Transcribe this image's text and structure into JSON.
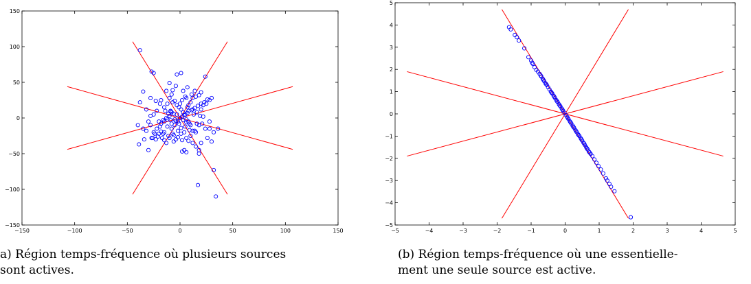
{
  "captions": {
    "a_line1": "a) Région temps-fréquence où plusieurs sources",
    "a_line2": "sont actives.",
    "b_line1": "(b) Région temps-fréquence où une essentielle-",
    "b_line2": "ment une seule source est active."
  },
  "colors": {
    "points": "#0000ff",
    "lines": "#ff0000",
    "axes": "#000000"
  },
  "chart_data": [
    {
      "type": "scatter",
      "panel": "a",
      "xlim": [
        -150,
        150
      ],
      "ylim": [
        -150,
        150
      ],
      "xticks": [
        -150,
        -100,
        -50,
        0,
        50,
        100,
        150
      ],
      "yticks": [
        -150,
        -100,
        -50,
        0,
        50,
        100,
        150
      ],
      "grid": false,
      "lines": [
        {
          "x": [
            -45,
            45
          ],
          "y": [
            107,
            -107
          ]
        },
        {
          "x": [
            -45,
            45
          ],
          "y": [
            -107,
            107
          ]
        },
        {
          "x": [
            -107,
            107
          ],
          "y": [
            44,
            -44
          ]
        },
        {
          "x": [
            -107,
            107
          ],
          "y": [
            -44,
            44
          ]
        }
      ],
      "points": [
        [
          -38,
          95
        ],
        [
          -27,
          65
        ],
        [
          -25,
          63
        ],
        [
          -35,
          37
        ],
        [
          -28,
          28
        ],
        [
          -38,
          22
        ],
        [
          -32,
          12
        ],
        [
          -40,
          -10
        ],
        [
          -35,
          -15
        ],
        [
          -39,
          -37
        ],
        [
          -34,
          -30
        ],
        [
          -30,
          -45
        ],
        [
          -26,
          -28
        ],
        [
          -20,
          -22
        ],
        [
          -18,
          -8
        ],
        [
          -15,
          -5
        ],
        [
          -12,
          -12
        ],
        [
          -10,
          3
        ],
        [
          -8,
          8
        ],
        [
          -5,
          -2
        ],
        [
          -3,
          5
        ],
        [
          -2,
          -5
        ],
        [
          0,
          0
        ],
        [
          2,
          2
        ],
        [
          3,
          -3
        ],
        [
          5,
          5
        ],
        [
          6,
          -6
        ],
        [
          8,
          10
        ],
        [
          10,
          -10
        ],
        [
          12,
          12
        ],
        [
          -15,
          15
        ],
        [
          -12,
          20
        ],
        [
          -18,
          25
        ],
        [
          -10,
          28
        ],
        [
          -8,
          33
        ],
        [
          -14,
          10
        ],
        [
          -20,
          -5
        ],
        [
          -22,
          -15
        ],
        [
          -25,
          -20
        ],
        [
          -28,
          -10
        ],
        [
          -32,
          -18
        ],
        [
          -30,
          -5
        ],
        [
          -6,
          -24
        ],
        [
          -4,
          -30
        ],
        [
          -10,
          -28
        ],
        [
          -13,
          -35
        ],
        [
          -15,
          -20
        ],
        [
          -8,
          -15
        ],
        [
          -2,
          -18
        ],
        [
          -5,
          -10
        ],
        [
          0,
          20
        ],
        [
          2,
          25
        ],
        [
          5,
          30
        ],
        [
          8,
          18
        ],
        [
          10,
          22
        ],
        [
          12,
          28
        ],
        [
          15,
          30
        ],
        [
          18,
          32
        ],
        [
          4,
          -20
        ],
        [
          6,
          -28
        ],
        [
          8,
          -32
        ],
        [
          10,
          -25
        ],
        [
          12,
          -35
        ],
        [
          15,
          -40
        ],
        [
          18,
          -45
        ],
        [
          14,
          -18
        ],
        [
          16,
          -8
        ],
        [
          18,
          -10
        ],
        [
          20,
          12
        ],
        [
          22,
          18
        ],
        [
          25,
          20
        ],
        [
          28,
          25
        ],
        [
          30,
          28
        ],
        [
          24,
          -15
        ],
        [
          26,
          -28
        ],
        [
          30,
          -33
        ],
        [
          28,
          -5
        ],
        [
          32,
          -20
        ],
        [
          20,
          -35
        ],
        [
          15,
          -20
        ],
        [
          12,
          -18
        ],
        [
          8,
          -5
        ],
        [
          5,
          -12
        ],
        [
          3,
          8
        ],
        [
          1,
          12
        ],
        [
          -1,
          15
        ],
        [
          -3,
          18
        ],
        [
          -7,
          22
        ],
        [
          -9,
          10
        ],
        [
          -11,
          6
        ],
        [
          -13,
          0
        ],
        [
          -16,
          -3
        ],
        [
          -19,
          -12
        ],
        [
          -21,
          -26
        ],
        [
          -23,
          -30
        ],
        [
          -8,
          -8
        ],
        [
          -4,
          -4
        ],
        [
          4,
          4
        ],
        [
          7,
          7
        ],
        [
          11,
          11
        ],
        [
          14,
          14
        ],
        [
          17,
          17
        ],
        [
          20,
          20
        ],
        [
          23,
          22
        ],
        [
          26,
          26
        ],
        [
          -6,
          6
        ],
        [
          -9,
          9
        ],
        [
          -12,
          -2
        ],
        [
          6,
          -2
        ],
        [
          9,
          -8
        ],
        [
          -3,
          61
        ],
        [
          1,
          63
        ],
        [
          -10,
          49
        ],
        [
          -7,
          39
        ],
        [
          3,
          38
        ],
        [
          6,
          28
        ],
        [
          -17,
          -28
        ],
        [
          -15,
          -31
        ],
        [
          -11,
          -25
        ],
        [
          -24,
          -22
        ],
        [
          -27,
          -28
        ],
        [
          4,
          -45
        ],
        [
          6,
          -48
        ],
        [
          2,
          -47
        ],
        [
          18,
          -50
        ],
        [
          24,
          58
        ],
        [
          28,
          -15
        ],
        [
          36,
          -15
        ],
        [
          32,
          -73
        ],
        [
          17,
          -94
        ],
        [
          34,
          -110
        ],
        [
          -7,
          -22
        ],
        [
          -2,
          -27
        ],
        [
          1,
          -22
        ],
        [
          2,
          -31
        ],
        [
          -16,
          -22
        ],
        [
          -18,
          -19
        ],
        [
          -6,
          -33
        ],
        [
          9,
          -17
        ],
        [
          21,
          -8
        ],
        [
          13,
          5
        ],
        [
          16,
          8
        ],
        [
          19,
          3
        ],
        [
          22,
          2
        ],
        [
          -22,
          10
        ],
        [
          -25,
          5
        ],
        [
          -28,
          3
        ],
        [
          -19,
          20
        ],
        [
          -23,
          24
        ],
        [
          11,
          33
        ],
        [
          14,
          38
        ],
        [
          7,
          43
        ],
        [
          -4,
          45
        ],
        [
          -13,
          38
        ],
        [
          20,
          36
        ],
        [
          -1,
          -8
        ],
        [
          1,
          -14
        ],
        [
          -5,
          24
        ],
        [
          7,
          15
        ],
        [
          -9,
          -3
        ]
      ]
    },
    {
      "type": "scatter",
      "panel": "b",
      "xlim": [
        -5,
        5
      ],
      "ylim": [
        -5,
        5
      ],
      "xticks": [
        -5,
        -4,
        -3,
        -2,
        -1,
        0,
        1,
        2,
        3,
        4,
        5
      ],
      "yticks": [
        -5,
        -4,
        -3,
        -2,
        -1,
        0,
        1,
        2,
        3,
        4,
        5
      ],
      "grid": false,
      "lines": [
        {
          "x": [
            -1.86,
            1.86
          ],
          "y": [
            4.7,
            -4.7
          ]
        },
        {
          "x": [
            -1.86,
            1.86
          ],
          "y": [
            -4.7,
            4.7
          ]
        },
        {
          "x": [
            -4.65,
            4.65
          ],
          "y": [
            1.9,
            -1.9
          ]
        },
        {
          "x": [
            -4.65,
            4.65
          ],
          "y": [
            -1.9,
            1.9
          ]
        }
      ],
      "points": [
        [
          -1.65,
          3.9
        ],
        [
          -1.6,
          3.8
        ],
        [
          -1.48,
          3.55
        ],
        [
          -1.42,
          3.45
        ],
        [
          -1.36,
          3.3
        ],
        [
          -1.2,
          2.95
        ],
        [
          -1.08,
          2.55
        ],
        [
          -0.97,
          2.3
        ],
        [
          -0.9,
          2.1
        ],
        [
          -0.85,
          1.98
        ],
        [
          -0.8,
          1.9
        ],
        [
          -0.75,
          1.8
        ],
        [
          -0.7,
          1.68
        ],
        [
          -0.66,
          1.58
        ],
        [
          -0.62,
          1.48
        ],
        [
          -0.58,
          1.38
        ],
        [
          -0.54,
          1.3
        ],
        [
          -0.5,
          1.2
        ],
        [
          -0.46,
          1.1
        ],
        [
          -0.42,
          1.0
        ],
        [
          -0.38,
          0.92
        ],
        [
          -0.34,
          0.82
        ],
        [
          -0.3,
          0.72
        ],
        [
          -0.26,
          0.62
        ],
        [
          -0.22,
          0.53
        ],
        [
          -0.18,
          0.43
        ],
        [
          -0.14,
          0.34
        ],
        [
          -0.1,
          0.24
        ],
        [
          -0.06,
          0.14
        ],
        [
          -0.02,
          0.05
        ],
        [
          0.02,
          -0.05
        ],
        [
          0.06,
          -0.14
        ],
        [
          0.1,
          -0.24
        ],
        [
          0.14,
          -0.34
        ],
        [
          0.18,
          -0.43
        ],
        [
          0.22,
          -0.53
        ],
        [
          0.26,
          -0.62
        ],
        [
          0.3,
          -0.72
        ],
        [
          0.34,
          -0.82
        ],
        [
          0.38,
          -0.92
        ],
        [
          0.42,
          -1.0
        ],
        [
          0.46,
          -1.1
        ],
        [
          0.5,
          -1.2
        ],
        [
          0.54,
          -1.3
        ],
        [
          0.58,
          -1.4
        ],
        [
          0.62,
          -1.5
        ],
        [
          0.66,
          -1.6
        ],
        [
          0.7,
          -1.7
        ],
        [
          0.75,
          -1.8
        ],
        [
          0.8,
          -1.9
        ],
        [
          0.86,
          -2.05
        ],
        [
          0.92,
          -2.2
        ],
        [
          0.98,
          -2.35
        ],
        [
          1.05,
          -2.5
        ],
        [
          1.12,
          -2.68
        ],
        [
          1.2,
          -2.9
        ],
        [
          1.24,
          -3.0
        ],
        [
          1.3,
          -3.15
        ],
        [
          1.35,
          -3.28
        ],
        [
          1.45,
          -3.48
        ],
        [
          1.93,
          -4.65
        ],
        [
          -0.4,
          0.96
        ],
        [
          -0.32,
          0.77
        ],
        [
          -0.24,
          0.57
        ],
        [
          -0.16,
          0.38
        ],
        [
          -0.08,
          0.19
        ],
        [
          0.08,
          -0.19
        ],
        [
          0.16,
          -0.38
        ],
        [
          0.24,
          -0.58
        ],
        [
          0.32,
          -0.77
        ],
        [
          0.4,
          -0.96
        ],
        [
          0.48,
          -1.15
        ],
        [
          0.56,
          -1.34
        ],
        [
          0.64,
          -1.55
        ],
        [
          0.72,
          -1.74
        ],
        [
          -0.56,
          1.34
        ],
        [
          -0.64,
          1.53
        ],
        [
          -0.72,
          1.73
        ],
        [
          -0.95,
          2.25
        ],
        [
          -1.0,
          2.4
        ]
      ]
    }
  ]
}
